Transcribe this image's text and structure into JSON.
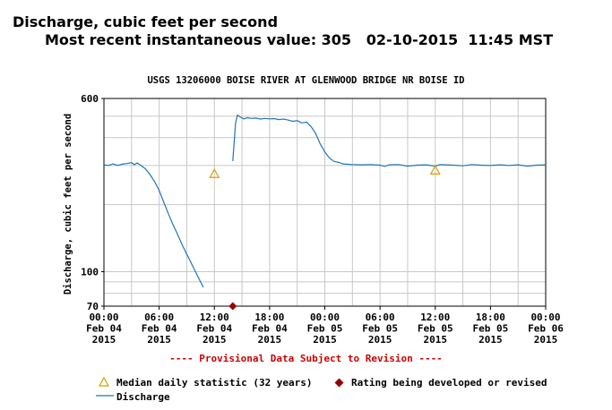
{
  "header": {
    "line1": "Discharge, cubic feet per second",
    "line2": "Most recent instantaneous value: 305   02-10-2015  11:45 MST"
  },
  "chart_data": {
    "type": "line",
    "title": "USGS 13206000 BOISE RIVER AT GLENWOOD BRIDGE NR BOISE ID",
    "ylabel": "Discharge, cubic feet per second",
    "xlabel": "",
    "yscale": "log",
    "ylim": [
      70,
      600
    ],
    "xlim_hours": [
      0,
      48
    ],
    "y_tick_labels": [
      "600",
      "100",
      "70"
    ],
    "y_ticks": [
      600,
      100,
      70
    ],
    "x_ticks": [
      {
        "hour": 0,
        "time": "00:00",
        "day": "Feb 04",
        "year": "2015"
      },
      {
        "hour": 6,
        "time": "06:00",
        "day": "Feb 04",
        "year": "2015"
      },
      {
        "hour": 12,
        "time": "12:00",
        "day": "Feb 04",
        "year": "2015"
      },
      {
        "hour": 18,
        "time": "18:00",
        "day": "Feb 04",
        "year": "2015"
      },
      {
        "hour": 24,
        "time": "00:00",
        "day": "Feb 05",
        "year": "2015"
      },
      {
        "hour": 30,
        "time": "06:00",
        "day": "Feb 05",
        "year": "2015"
      },
      {
        "hour": 36,
        "time": "12:00",
        "day": "Feb 05",
        "year": "2015"
      },
      {
        "hour": 42,
        "time": "18:00",
        "day": "Feb 05",
        "year": "2015"
      },
      {
        "hour": 48,
        "time": "00:00",
        "day": "Feb 06",
        "year": "2015"
      }
    ],
    "grid": true,
    "series": [
      {
        "name": "Discharge",
        "color": "#1f77b4",
        "segments": [
          [
            [
              0,
              302
            ],
            [
              0.5,
              300
            ],
            [
              1,
              305
            ],
            [
              1.5,
              300
            ],
            [
              2,
              304
            ],
            [
              2.5,
              306
            ],
            [
              3,
              309
            ],
            [
              3.3,
              302
            ],
            [
              3.6,
              308
            ],
            [
              4,
              300
            ],
            [
              4.5,
              290
            ],
            [
              5,
              273
            ],
            [
              5.5,
              254
            ],
            [
              6,
              232
            ],
            [
              6.5,
              205
            ],
            [
              7,
              182
            ],
            [
              7.5,
              163
            ],
            [
              8,
              147
            ],
            [
              8.5,
              132
            ],
            [
              9,
              120
            ],
            [
              9.5,
              109
            ],
            [
              10,
              99
            ],
            [
              10.5,
              90
            ],
            [
              10.8,
              85
            ]
          ],
          [
            [
              14,
              314
            ],
            [
              14.3,
              465
            ],
            [
              14.5,
              505
            ],
            [
              14.8,
              496
            ],
            [
              15.2,
              486
            ],
            [
              15.6,
              492
            ],
            [
              16,
              488
            ],
            [
              16.5,
              490
            ],
            [
              17,
              485
            ],
            [
              17.5,
              488
            ],
            [
              18,
              486
            ],
            [
              18.5,
              487
            ],
            [
              19,
              482
            ],
            [
              19.5,
              485
            ],
            [
              20,
              480
            ],
            [
              20.5,
              474
            ],
            [
              21,
              477
            ],
            [
              21.5,
              466
            ],
            [
              22,
              470
            ],
            [
              22.5,
              449
            ],
            [
              23,
              418
            ],
            [
              23.5,
              375
            ],
            [
              24,
              345
            ],
            [
              24.5,
              324
            ],
            [
              25,
              313
            ],
            [
              25.5,
              310
            ],
            [
              26,
              305
            ],
            [
              27,
              303
            ],
            [
              28,
              302
            ],
            [
              29,
              303
            ],
            [
              30,
              301
            ],
            [
              30.5,
              297
            ],
            [
              31,
              302
            ],
            [
              32,
              303
            ],
            [
              33,
              298
            ],
            [
              34,
              301
            ],
            [
              35,
              302
            ],
            [
              36,
              298
            ],
            [
              36.5,
              303
            ],
            [
              37,
              302
            ],
            [
              38,
              301
            ],
            [
              39,
              299
            ],
            [
              40,
              303
            ],
            [
              41,
              301
            ],
            [
              42,
              300
            ],
            [
              43,
              302
            ],
            [
              44,
              300
            ],
            [
              45,
              302
            ],
            [
              46,
              298
            ],
            [
              47,
              301
            ],
            [
              48,
              302
            ]
          ]
        ]
      }
    ],
    "median_daily_statistic": [
      {
        "hour": 12,
        "value": 275
      },
      {
        "hour": 36,
        "value": 285
      }
    ],
    "rating_points": [
      {
        "hour": 14,
        "value": 70
      }
    ],
    "colors": {
      "discharge": "#1f77b4",
      "median": "#d4a000",
      "rating": "#990000",
      "grid": "#c8c8c8",
      "provisional": "#cc0000"
    }
  },
  "provisional_note": "---- Provisional Data Subject to Revision ----",
  "legend": {
    "median_label": "Median daily statistic (32 years)",
    "rating_label": "Rating being developed or revised",
    "discharge_label": "Discharge"
  }
}
